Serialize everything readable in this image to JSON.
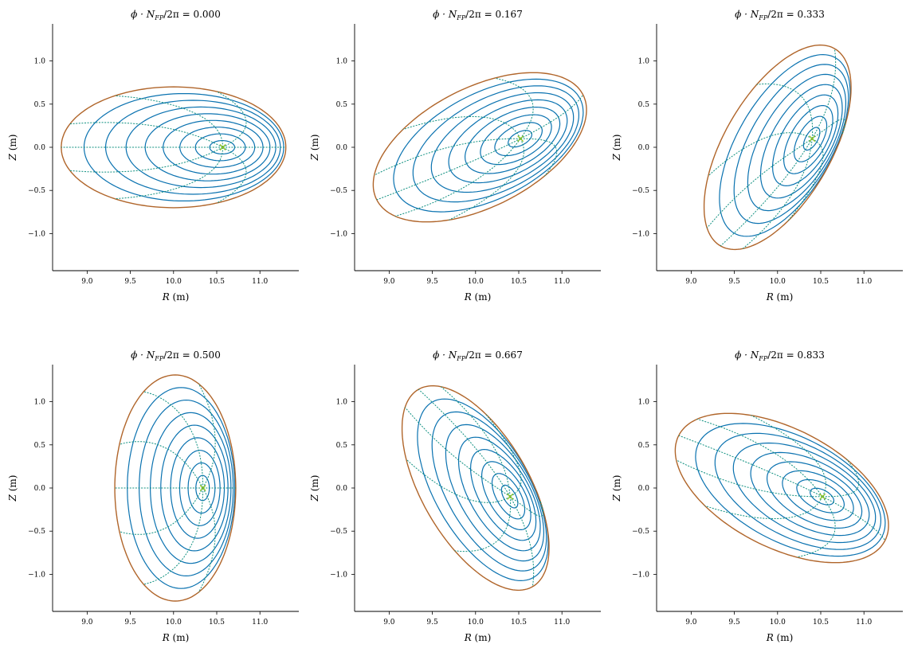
{
  "chart_data": [
    {
      "type": "line",
      "title": "ϕ · N_FP / 2π = 0.000",
      "title_parts": {
        "lhs": "ϕ · N",
        "sub": "FP",
        "rhs": "/2π = ",
        "value": "0.000"
      },
      "xlabel": "R (m)",
      "ylabel": "Z (m)",
      "xlim": [
        8.6,
        11.45
      ],
      "ylim": [
        -1.43,
        1.43
      ],
      "xticks": [
        "9.0",
        "9.5",
        "10.0",
        "10.5",
        "11.0"
      ],
      "yticks": [
        "−1.0",
        "−0.5",
        "0.0",
        "0.5",
        "1.0"
      ],
      "xtick_values": [
        9.0,
        9.5,
        10.0,
        10.5,
        11.0
      ],
      "ytick_values": [
        -1.0,
        -0.5,
        0.0,
        0.5,
        1.0
      ],
      "boundary": {
        "R_center": 10.0,
        "Z_center": 0.0,
        "R_semi": 1.3,
        "Z_semi": 0.7,
        "tilt_deg": 0
      },
      "magnetic_axis": {
        "R": 10.57,
        "Z": 0.0
      },
      "n_flux_surfaces": 9,
      "n_theta_lines": 8
    },
    {
      "type": "line",
      "title": "ϕ · N_FP / 2π = 0.167",
      "title_parts": {
        "lhs": "ϕ · N",
        "sub": "FP",
        "rhs": "/2π = ",
        "value": "0.167"
      },
      "xlabel": "R (m)",
      "ylabel": "Z (m)",
      "xlim": [
        8.6,
        11.45
      ],
      "ylim": [
        -1.43,
        1.43
      ],
      "xticks": [
        "9.0",
        "9.5",
        "10.0",
        "10.5",
        "11.0"
      ],
      "yticks": [
        "−1.0",
        "−0.5",
        "0.0",
        "0.5",
        "1.0"
      ],
      "xtick_values": [
        9.0,
        9.5,
        10.0,
        10.5,
        11.0
      ],
      "ytick_values": [
        -1.0,
        -0.5,
        0.0,
        0.5,
        1.0
      ],
      "boundary": {
        "R_center": 10.05,
        "Z_center": 0.0,
        "R_semi": 1.34,
        "Z_semi": 0.69,
        "tilt_deg": 27
      },
      "magnetic_axis": {
        "R": 10.52,
        "Z": 0.1
      },
      "n_flux_surfaces": 9,
      "n_theta_lines": 8
    },
    {
      "type": "line",
      "title": "ϕ · N_FP / 2π = 0.333",
      "title_parts": {
        "lhs": "ϕ · N",
        "sub": "FP",
        "rhs": "/2π = ",
        "value": "0.333"
      },
      "xlabel": "R (m)",
      "ylabel": "Z (m)",
      "xlim": [
        8.6,
        11.45
      ],
      "ylim": [
        -1.43,
        1.43
      ],
      "xticks": [
        "9.0",
        "9.5",
        "10.0",
        "10.5",
        "11.0"
      ],
      "yticks": [
        "−1.0",
        "−0.5",
        "0.0",
        "0.5",
        "1.0"
      ],
      "xtick_values": [
        9.0,
        9.5,
        10.0,
        10.5,
        11.0
      ],
      "ytick_values": [
        -1.0,
        -0.5,
        0.0,
        0.5,
        1.0
      ],
      "boundary": {
        "R_center": 10.0,
        "Z_center": 0.0,
        "R_semi": 1.32,
        "Z_semi": 0.62,
        "tilt_deg": 60
      },
      "magnetic_axis": {
        "R": 10.4,
        "Z": 0.1
      },
      "n_flux_surfaces": 9,
      "n_theta_lines": 8
    },
    {
      "type": "line",
      "title": "ϕ · N_FP / 2π = 0.500",
      "title_parts": {
        "lhs": "ϕ · N",
        "sub": "FP",
        "rhs": "/2π = ",
        "value": "0.500"
      },
      "xlabel": "R (m)",
      "ylabel": "Z (m)",
      "xlim": [
        8.6,
        11.45
      ],
      "ylim": [
        -1.43,
        1.43
      ],
      "xticks": [
        "9.0",
        "9.5",
        "10.0",
        "10.5",
        "11.0"
      ],
      "yticks": [
        "−1.0",
        "−0.5",
        "0.0",
        "0.5",
        "1.0"
      ],
      "xtick_values": [
        9.0,
        9.5,
        10.0,
        10.5,
        11.0
      ],
      "ytick_values": [
        -1.0,
        -0.5,
        0.0,
        0.5,
        1.0
      ],
      "boundary": {
        "R_center": 10.02,
        "Z_center": 0.0,
        "R_semi": 0.7,
        "Z_semi": 1.31,
        "tilt_deg": 0
      },
      "magnetic_axis": {
        "R": 10.34,
        "Z": 0.0
      },
      "n_flux_surfaces": 9,
      "n_theta_lines": 8
    },
    {
      "type": "line",
      "title": "ϕ · N_FP / 2π = 0.667",
      "title_parts": {
        "lhs": "ϕ · N",
        "sub": "FP",
        "rhs": "/2π = ",
        "value": "0.667"
      },
      "xlabel": "R (m)",
      "ylabel": "Z (m)",
      "xlim": [
        8.6,
        11.45
      ],
      "ylim": [
        -1.43,
        1.43
      ],
      "xticks": [
        "9.0",
        "9.5",
        "10.0",
        "10.5",
        "11.0"
      ],
      "yticks": [
        "−1.0",
        "−0.5",
        "0.0",
        "0.5",
        "1.0"
      ],
      "xtick_values": [
        9.0,
        9.5,
        10.0,
        10.5,
        11.0
      ],
      "ytick_values": [
        -1.0,
        -0.5,
        0.0,
        0.5,
        1.0
      ],
      "boundary": {
        "R_center": 10.0,
        "Z_center": 0.0,
        "R_semi": 1.32,
        "Z_semi": 0.62,
        "tilt_deg": -60
      },
      "magnetic_axis": {
        "R": 10.4,
        "Z": -0.1
      },
      "n_flux_surfaces": 9,
      "n_theta_lines": 8
    },
    {
      "type": "line",
      "title": "ϕ · N_FP / 2π = 0.833",
      "title_parts": {
        "lhs": "ϕ · N",
        "sub": "FP",
        "rhs": "/2π = ",
        "value": "0.833"
      },
      "xlabel": "R (m)",
      "ylabel": "Z (m)",
      "xlim": [
        8.6,
        11.45
      ],
      "ylim": [
        -1.43,
        1.43
      ],
      "xticks": [
        "9.0",
        "9.5",
        "10.0",
        "10.5",
        "11.0"
      ],
      "yticks": [
        "−1.0",
        "−0.5",
        "0.0",
        "0.5",
        "1.0"
      ],
      "xtick_values": [
        9.0,
        9.5,
        10.0,
        10.5,
        11.0
      ],
      "ytick_values": [
        -1.0,
        -0.5,
        0.0,
        0.5,
        1.0
      ],
      "boundary": {
        "R_center": 10.05,
        "Z_center": 0.0,
        "R_semi": 1.34,
        "Z_semi": 0.69,
        "tilt_deg": -27
      },
      "magnetic_axis": {
        "R": 10.52,
        "Z": -0.1
      },
      "n_flux_surfaces": 9,
      "n_theta_lines": 8
    }
  ],
  "colors": {
    "flux_surface": "#0a72b0",
    "boundary": "#b0652a",
    "theta_line": "#0f9080",
    "magnetic_axis": "#8ec31e"
  }
}
